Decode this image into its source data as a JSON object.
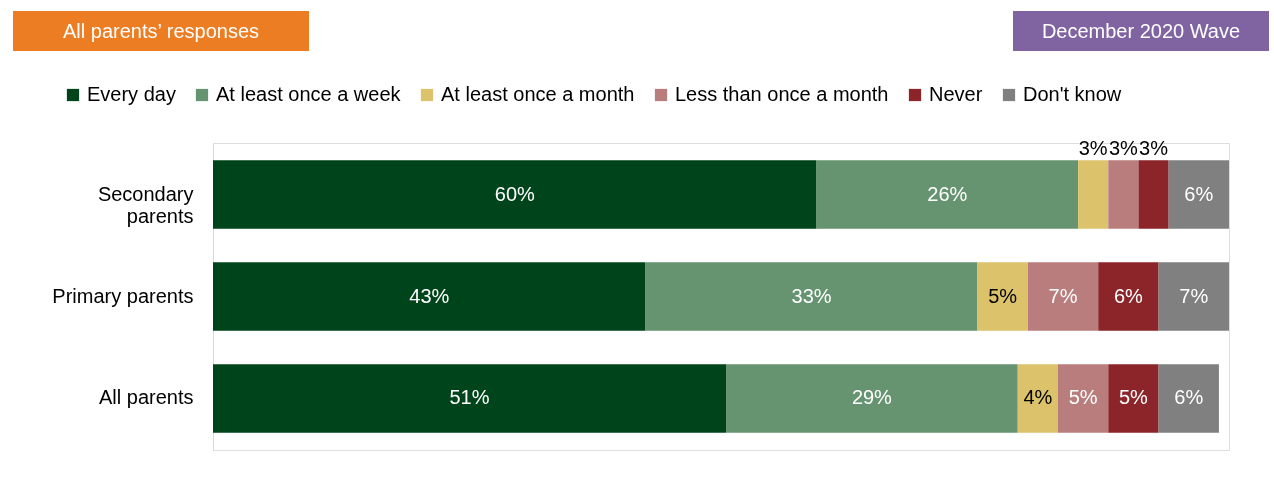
{
  "chart_data": {
    "type": "bar",
    "orientation": "horizontal",
    "stacked": true,
    "title": "All parents’ responses",
    "annotations": [
      "December 2020 Wave"
    ],
    "categories": [
      "Secondary parents",
      "Primary parents",
      "All parents"
    ],
    "series": [
      {
        "name": "Every day",
        "color": "#00441b",
        "values": [
          60,
          43,
          51
        ],
        "value_labels": [
          "60%",
          "43%",
          "51%"
        ]
      },
      {
        "name": "At least once a week",
        "color": "#669471",
        "values": [
          26,
          33,
          29
        ],
        "value_labels": [
          "26%",
          "33%",
          "29%"
        ]
      },
      {
        "name": "At least once a month",
        "color": "#dcc36b",
        "values": [
          3,
          5,
          4
        ],
        "value_labels": [
          "3%",
          "5%",
          "4%"
        ]
      },
      {
        "name": "Less than once a month",
        "color": "#b97d7d",
        "values": [
          3,
          7,
          5
        ],
        "value_labels": [
          "3%",
          "7%",
          "5%"
        ]
      },
      {
        "name": "Never",
        "color": "#8b252a",
        "values": [
          3,
          6,
          5
        ],
        "value_labels": [
          "3%",
          "6%",
          "5%"
        ]
      },
      {
        "name": "Don't know",
        "color": "#808080",
        "values": [
          6,
          7,
          6
        ],
        "value_labels": [
          "6%",
          "7%",
          "6%"
        ]
      }
    ],
    "legend": "top",
    "grid": false,
    "tick_labels": "y"
  }
}
